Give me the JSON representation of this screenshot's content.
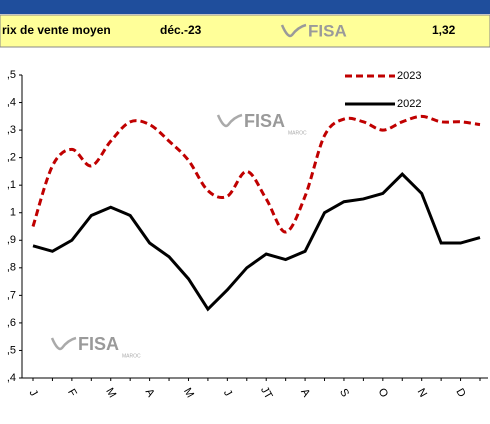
{
  "header": {
    "label": "rix de vente moyen",
    "date": "déc.-23",
    "value": "1,32",
    "logo": "FISA",
    "logo_sub": "MAROC"
  },
  "chart_data": {
    "type": "line",
    "categories": [
      "J",
      null,
      "F",
      null,
      "M",
      null,
      "A",
      null,
      "M",
      null,
      "J",
      null,
      "JT",
      null,
      "A",
      null,
      "S",
      null,
      "O",
      null,
      "N",
      null,
      "D",
      null
    ],
    "series": [
      {
        "name": "2023",
        "color": "#c00000",
        "dash": true,
        "values": [
          0.95,
          1.17,
          1.23,
          1.17,
          1.26,
          1.33,
          1.32,
          1.26,
          1.19,
          1.08,
          1.06,
          1.15,
          1.05,
          0.93,
          1.06,
          1.28,
          1.34,
          1.33,
          1.3,
          1.33,
          1.35,
          1.33,
          1.33,
          1.32
        ]
      },
      {
        "name": "2022",
        "color": "#000000",
        "dash": false,
        "values": [
          0.88,
          0.86,
          0.9,
          0.99,
          1.02,
          0.99,
          0.89,
          0.84,
          0.76,
          0.65,
          0.72,
          0.8,
          0.85,
          0.83,
          0.86,
          1.0,
          1.04,
          1.05,
          1.07,
          1.14,
          1.07,
          0.89,
          0.89,
          0.91
        ]
      }
    ],
    "ylim": [
      0.4,
      1.5
    ],
    "yticks": [
      {
        "value": 0.4,
        "label": ",4"
      },
      {
        "value": 0.5,
        "label": ",5"
      },
      {
        "value": 0.6,
        "label": ",6"
      },
      {
        "value": 0.7,
        "label": ",7"
      },
      {
        "value": 0.8,
        "label": ",8"
      },
      {
        "value": 0.9,
        "label": ",9"
      },
      1,
      {
        "value": 1.1,
        "label": ",1"
      },
      {
        "value": 1.2,
        "label": ",2"
      },
      {
        "value": 1.3,
        "label": ",3"
      },
      {
        "value": 1.4,
        "label": ",4"
      },
      {
        "value": 1.5,
        "label": ",5"
      }
    ],
    "legend": "top-right"
  }
}
